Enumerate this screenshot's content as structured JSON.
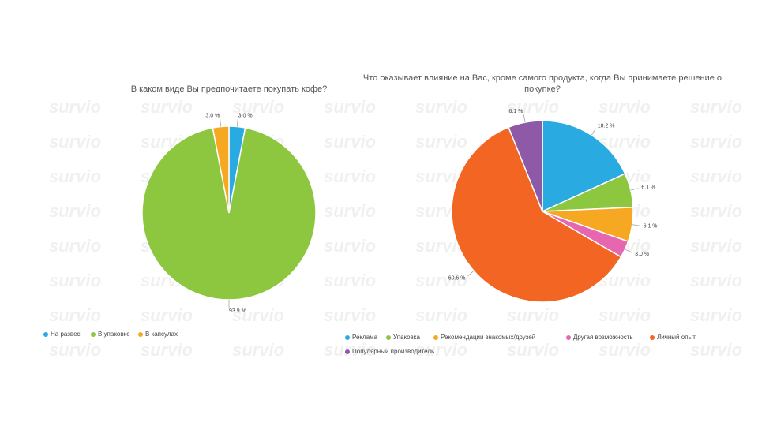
{
  "watermark": "survio",
  "chart_data": [
    {
      "type": "pie",
      "title": "В каком виде Вы предпочитаете покупать кофе?",
      "categories": [
        "На развес",
        "В упаковке",
        "В капсулах"
      ],
      "values": [
        3.0,
        93.9,
        3.0
      ],
      "value_labels": [
        "3.0 %",
        "93.9 %",
        "3.0 %"
      ],
      "colors": [
        "#29abe2",
        "#8dc63f",
        "#f7a823"
      ]
    },
    {
      "type": "pie",
      "title": "Что оказывает влияние на Вас, кроме самого продукта, когда Вы принимаете решение о покупке?",
      "categories": [
        "Реклама",
        "Упаковка",
        "Рекомендации знакомых/друзей",
        "Другая возможность",
        "Личный опыт",
        "Популярный производитель"
      ],
      "values": [
        18.2,
        6.1,
        6.1,
        3.0,
        60.6,
        6.1
      ],
      "value_labels": [
        "18.2 %",
        "6.1 %",
        "6.1 %",
        "3,0 %",
        "60.6 %",
        "6.1 %"
      ],
      "colors": [
        "#29abe2",
        "#8dc63f",
        "#f7a823",
        "#e667b0",
        "#f26522",
        "#8e5aa8"
      ]
    }
  ]
}
